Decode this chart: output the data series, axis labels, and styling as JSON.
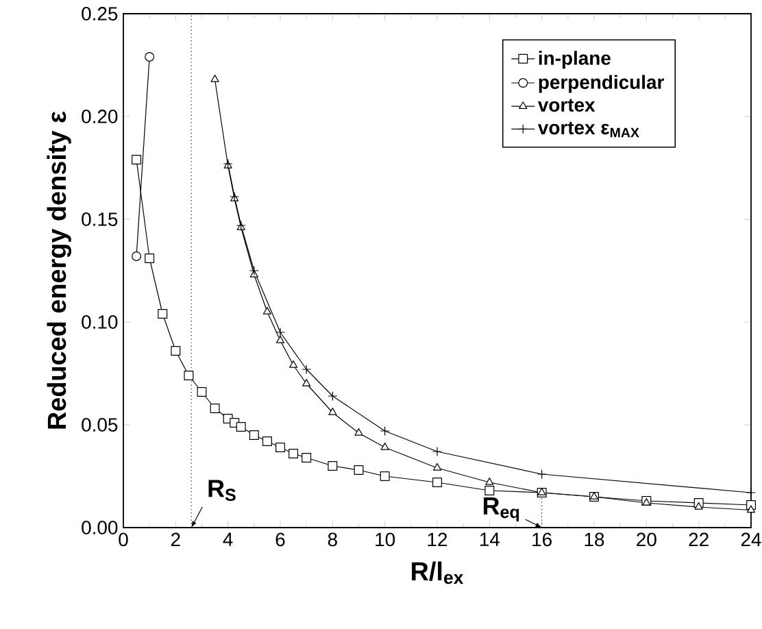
{
  "chart_data": {
    "type": "line",
    "xlabel": "R/l$_{ex}$",
    "ylabel": "Reduced energy density  ε",
    "xlim": [
      0,
      24
    ],
    "xticks": [
      0,
      2,
      4,
      6,
      8,
      10,
      12,
      14,
      16,
      18,
      20,
      22,
      24
    ],
    "ylim": [
      0,
      0.25
    ],
    "yticks": [
      {
        "value": 0,
        "label": "0.00"
      },
      {
        "value": 0.05,
        "label": "0.05"
      },
      {
        "value": 0.1,
        "label": "0.10"
      },
      {
        "value": 0.15,
        "label": "0.15"
      },
      {
        "value": 0.2,
        "label": "0.20"
      },
      {
        "value": 0.25,
        "label": "0.25"
      }
    ],
    "grid": false,
    "legend": "top right",
    "line_style": "solid",
    "series": [
      {
        "name": "in-plane",
        "color": "#000000",
        "marker": "square",
        "x": [
          0.5,
          1,
          1.5,
          2,
          2.5,
          3,
          3.5,
          4,
          4.25,
          4.5,
          5,
          5.5,
          6,
          6.5,
          7,
          8,
          9,
          10,
          12,
          14,
          16,
          18,
          20,
          22,
          24
        ],
        "values": [
          0.179,
          0.131,
          0.104,
          0.086,
          0.074,
          0.066,
          0.058,
          0.053,
          0.051,
          0.049,
          0.045,
          0.042,
          0.039,
          0.036,
          0.034,
          0.03,
          0.028,
          0.025,
          0.022,
          0.018,
          0.017,
          0.015,
          0.013,
          0.012,
          0.011
        ]
      },
      {
        "name": "perpendicular",
        "color": "#000000",
        "marker": "circle",
        "x": [
          0.5,
          1
        ],
        "values": [
          0.132,
          0.229
        ]
      },
      {
        "name": "vortex",
        "color": "#000000",
        "marker": "triangle",
        "x": [
          3.5,
          4,
          4.25,
          4.5,
          5,
          5.5,
          6,
          6.5,
          7,
          8,
          9,
          10,
          12,
          14,
          16,
          18,
          20,
          22,
          24
        ],
        "values": [
          0.218,
          0.176,
          0.16,
          0.146,
          0.123,
          0.105,
          0.091,
          0.079,
          0.07,
          0.056,
          0.046,
          0.039,
          0.029,
          0.022,
          0.017,
          0.015,
          0.012,
          0.01,
          0.0085
        ]
      },
      {
        "name": "vortex ε$_{MAX}$",
        "color": "#000000",
        "marker": "cross",
        "x": [
          4,
          4.25,
          4.5,
          5,
          6,
          7,
          8,
          10,
          12,
          16,
          24
        ],
        "values": [
          0.177,
          0.161,
          0.147,
          0.125,
          0.095,
          0.077,
          0.064,
          0.047,
          0.037,
          0.026,
          0.017
        ]
      }
    ],
    "ref_lines": [
      {
        "axis": "x",
        "value": 2.6,
        "label": "R$_{S}$",
        "line_style": "dotted"
      }
    ],
    "annotations": [
      {
        "text": "R$_{eq}$",
        "x": 16,
        "y": 0.017
      }
    ]
  }
}
